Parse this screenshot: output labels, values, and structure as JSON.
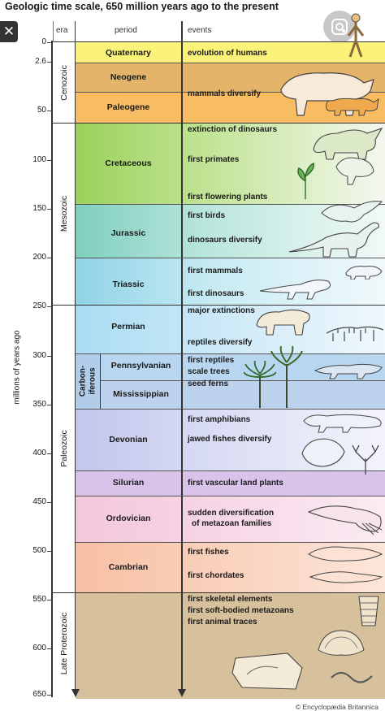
{
  "title": "Geologic time scale, 650 million years ago to the present",
  "icons": {
    "close": "close-icon",
    "lens": "lens-icon"
  },
  "headers": {
    "era": "era",
    "period": "period",
    "events": "events"
  },
  "y_axis_label": "millions of years ago",
  "ticks": [
    "0",
    "2.6",
    "50",
    "100",
    "150",
    "200",
    "250",
    "300",
    "350",
    "400",
    "450",
    "500",
    "550",
    "600",
    "650"
  ],
  "eras": [
    "Cenozoic",
    "Mesozoic",
    "Paleozoic",
    "Late Proterozoic"
  ],
  "periods": [
    "Quaternary",
    "Neogene",
    "Paleogene",
    "Cretaceous",
    "Jurassic",
    "Triassic",
    "Permian",
    "Pennsylvanian",
    "Mississippian",
    "Devonian",
    "Silurian",
    "Ordovician",
    "Cambrian"
  ],
  "carboniferous": [
    "Carbon-",
    "iferous"
  ],
  "events": [
    "evolution of humans",
    "mammals diversify",
    "extinction of dinosaurs",
    "first primates",
    "first flowering plants",
    "first birds",
    "dinosaurs diversify",
    "first mammals",
    "first dinosaurs",
    "major extinctions",
    "reptiles diversify",
    "first reptiles",
    "scale trees",
    "seed ferns",
    "first amphibians",
    "jawed fishes diversify",
    "first vascular land plants",
    "sudden diversification",
    "of metazoan families",
    "first fishes",
    "first chordates",
    "first skeletal elements",
    "first soft-bodied metazoans",
    "first animal traces"
  ],
  "credit": "© Encyclopædia Britannica",
  "colors": {
    "quaternary": "#fbf27a",
    "neogene": "#e3b46a",
    "paleogene": "#f8bc63",
    "cretaceous": "#9ad25a",
    "jurassic": "#7fcfbf",
    "triassic": "#8fd3e6",
    "permian": "#a9dcf2",
    "pennsylvanian": "#b8d6ef",
    "mississippian": "#bcd2ec",
    "devonian": "#c2c7ec",
    "silurian": "#d9c3ea",
    "ordovician": "#f3c6dc",
    "cambrian": "#f7c0a4",
    "proterozoic": "#d7c09c"
  }
}
